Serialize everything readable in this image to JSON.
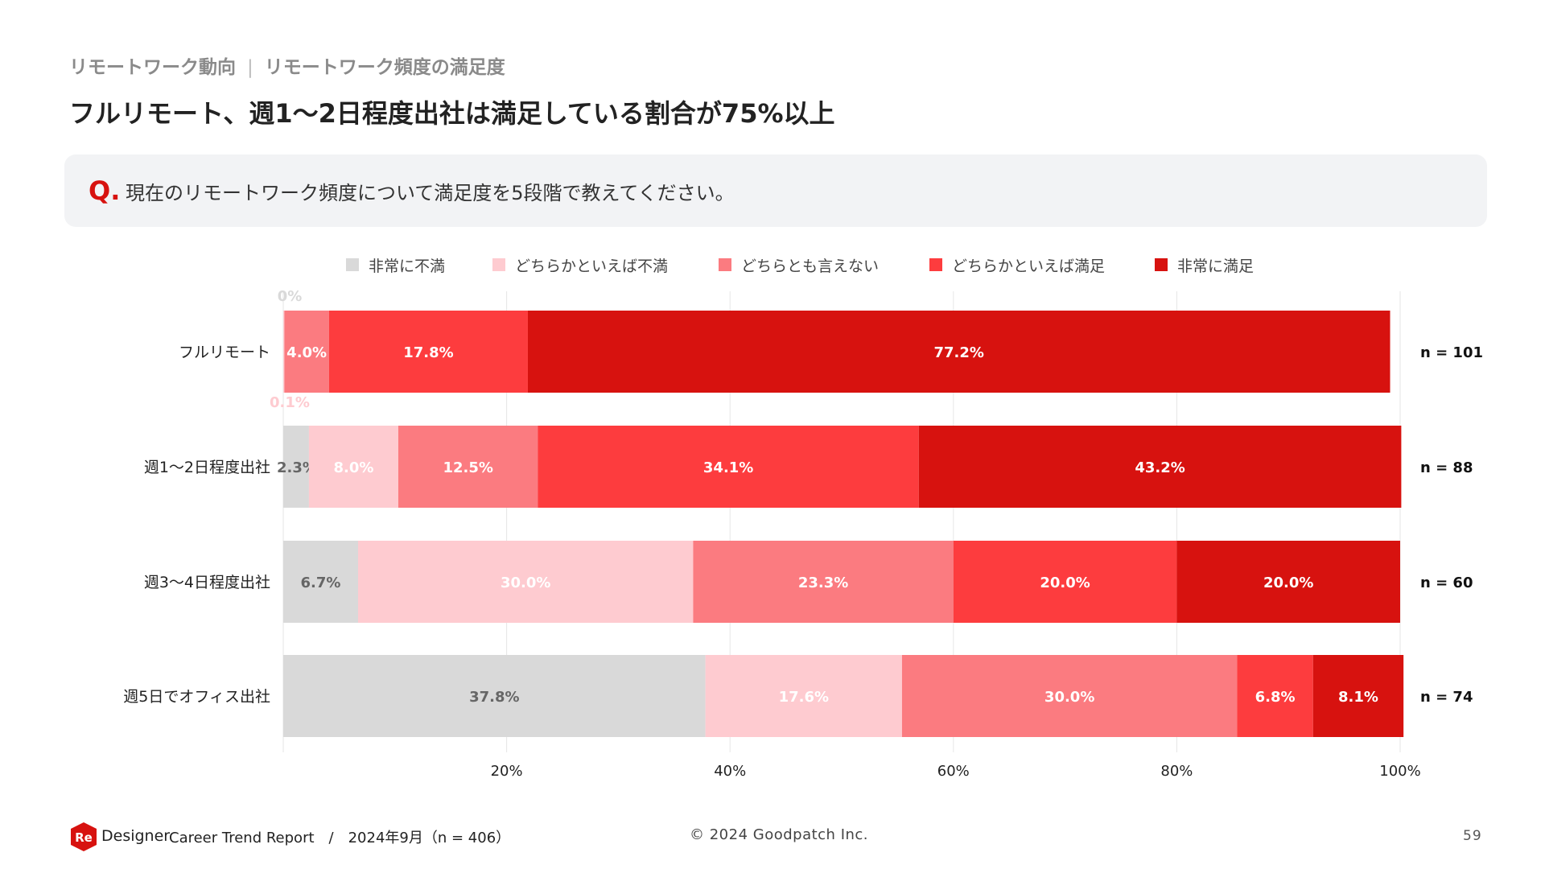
{
  "header": {
    "breadcrumb_section": "リモートワーク動向",
    "breadcrumb_separator": "|",
    "breadcrumb_topic": "リモートワーク頻度の満足度",
    "title": "フルリモート、週1〜2日程度出社は満足している割合が75%以上"
  },
  "question": {
    "mark": "Q.",
    "text": "現在のリモートワーク頻度について満足度を5段階で教えてください。"
  },
  "chart_data": {
    "type": "bar",
    "orientation": "horizontal",
    "stacked": true,
    "categories": [
      "フルリモート",
      "週1〜2日程度出社",
      "週3〜4日程度出社",
      "週5日でオフィス出社"
    ],
    "series": [
      {
        "name": "非常に不満",
        "color": "#d9d9d9",
        "label_color": "#666666",
        "values": [
          0,
          2.3,
          6.7,
          37.8
        ],
        "labels": [
          "0%",
          "2.3%",
          "6.7%",
          "37.8%"
        ]
      },
      {
        "name": "どちらかといえば不満",
        "color": "#fecbd0",
        "label_color": "#ffffff",
        "values": [
          0.1,
          8.0,
          30.0,
          17.6
        ],
        "labels": [
          "0.1%",
          "8.0%",
          "30.0%",
          "17.6%"
        ]
      },
      {
        "name": "どちらとも言えない",
        "color": "#fb7b80",
        "label_color": "#ffffff",
        "values": [
          4.0,
          12.5,
          23.3,
          30.0
        ],
        "labels": [
          "4.0%",
          "12.5%",
          "23.3%",
          "30.0%"
        ]
      },
      {
        "name": "どちらかといえば満足",
        "color": "#fd3c3e",
        "label_color": "#ffffff",
        "values": [
          17.8,
          34.1,
          20.0,
          6.8
        ],
        "labels": [
          "17.8%",
          "34.1%",
          "20.0%",
          "6.8%"
        ]
      },
      {
        "name": "非常に満足",
        "color": "#d7120f",
        "label_color": "#ffffff",
        "values": [
          77.2,
          43.2,
          20.0,
          8.1
        ],
        "labels": [
          "77.2%",
          "43.2%",
          "20.0%",
          "8.1%"
        ]
      }
    ],
    "n_labels": [
      "n = 101",
      "n = 88",
      "n = 60",
      "n = 74"
    ],
    "xlim": [
      0,
      100
    ],
    "xticks": [
      20,
      40,
      60,
      80,
      100
    ],
    "xtick_labels": [
      "20%",
      "40%",
      "60%",
      "80%",
      "100%"
    ],
    "grid": true,
    "legend": "top"
  },
  "footer": {
    "logo_text": "Re",
    "brand": "Designer",
    "report": "Career Trend Report　/　2024年9月（n = 406）",
    "copyright": "© 2024 Goodpatch Inc.",
    "page_number": "59",
    "logo_color": "#d7120f"
  }
}
